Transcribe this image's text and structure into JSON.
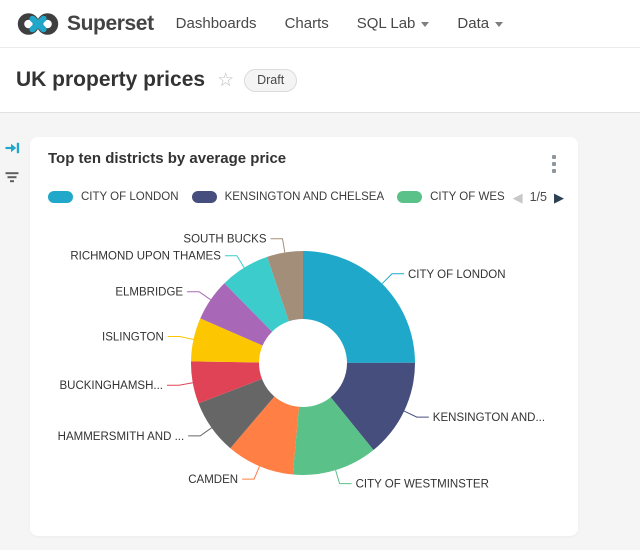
{
  "navbar": {
    "brand": "Superset",
    "items": [
      {
        "label": "Dashboards",
        "has_caret": false
      },
      {
        "label": "Charts",
        "has_caret": false
      },
      {
        "label": "SQL Lab",
        "has_caret": true
      },
      {
        "label": "Data",
        "has_caret": true
      }
    ]
  },
  "header": {
    "title": "UK property prices",
    "status_badge": "Draft",
    "favorite_icon": "star-outline"
  },
  "card": {
    "menu_icon": "kebab-menu"
  },
  "legend": {
    "page_indicator": "1/5",
    "items": [
      {
        "label": "CITY OF LONDON",
        "color": "#1FA8C9"
      },
      {
        "label": "KENSINGTON AND CHELSEA",
        "color": "#454E7C"
      },
      {
        "label": "CITY OF WES",
        "color": "#5AC189"
      }
    ]
  },
  "chart_data": {
    "type": "pie",
    "subtype": "donut",
    "title": "Top ten districts by average price",
    "legend_position": "top",
    "start_angle_deg": 0,
    "clockwise": true,
    "inner_radius_ratio": 0.39,
    "slices": [
      {
        "label": "CITY OF LONDON",
        "value_pct": 25.0,
        "color": "#1FA8C9"
      },
      {
        "label": "KENSINGTON AND...",
        "value_pct": 14.2,
        "color": "#454E7C"
      },
      {
        "label": "CITY OF WESTMINSTER",
        "value_pct": 12.3,
        "color": "#5AC189"
      },
      {
        "label": "CAMDEN",
        "value_pct": 9.8,
        "color": "#FF7F44"
      },
      {
        "label": "HAMMERSMITH AND ...",
        "value_pct": 7.9,
        "color": "#666666"
      },
      {
        "label": "BUCKINGHAMSH...",
        "value_pct": 6.1,
        "color": "#E04355"
      },
      {
        "label": "ISLINGTON",
        "value_pct": 6.3,
        "color": "#FCC700"
      },
      {
        "label": "ELMBRIDGE",
        "value_pct": 6.1,
        "color": "#A868B7"
      },
      {
        "label": "RICHMOND UPON THAMES",
        "value_pct": 7.2,
        "color": "#3CCCCB"
      },
      {
        "label": "SOUTH BUCKS",
        "value_pct": 5.2,
        "color": "#A38F79"
      }
    ]
  },
  "colors": {
    "accent_teal": "#20A7C9",
    "dashboard_bg": "#F5F5F5",
    "pager_next": "#2C4054"
  }
}
